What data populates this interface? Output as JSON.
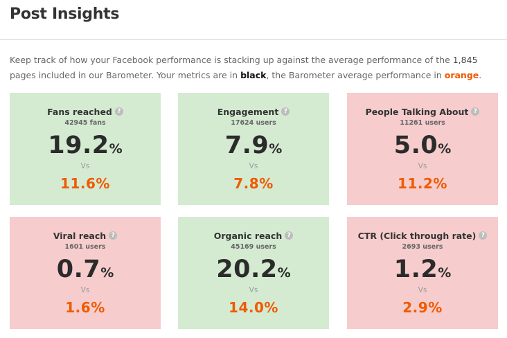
{
  "page": {
    "title": "Post Insights",
    "intro": {
      "text_before_count": "Keep track of how your Facebook performance is stacking up against the average performance of the ",
      "pages_count": "1,845",
      "text_after_count": " pages included in our Barometer.   Your metrics are in ",
      "black_word": "black",
      "text_middle": ", the Barometer average performance in ",
      "orange_word": "orange",
      "text_end": "."
    }
  },
  "colors": {
    "better_card": "#d4ebd2",
    "worse_card": "#f6cccc",
    "benchmark_orange": "#f05a00"
  },
  "cards": [
    {
      "title": "Fans reached",
      "users": "42945 fans",
      "value": "19.2",
      "unit": "%",
      "vs": "Vs",
      "benchmark": "11.6%",
      "status": "better",
      "help_icon": "question-icon"
    },
    {
      "title": "Engagement",
      "users": "17624 users",
      "value": "7.9",
      "unit": "%",
      "vs": "Vs",
      "benchmark": "7.8%",
      "status": "better",
      "help_icon": "question-icon"
    },
    {
      "title": "People Talking About",
      "users": "11261 users",
      "value": "5.0",
      "unit": "%",
      "vs": "Vs",
      "benchmark": "11.2%",
      "status": "worse",
      "help_icon": "question-icon"
    },
    {
      "title": "Viral reach",
      "users": "1601 users",
      "value": "0.7",
      "unit": "%",
      "vs": "Vs",
      "benchmark": "1.6%",
      "status": "worse",
      "help_icon": "question-icon"
    },
    {
      "title": "Organic reach",
      "users": "45169 users",
      "value": "20.2",
      "unit": "%",
      "vs": "Vs",
      "benchmark": "14.0%",
      "status": "better",
      "help_icon": "question-icon"
    },
    {
      "title": "CTR (Click through rate)",
      "users": "2693 users",
      "value": "1.2",
      "unit": "%",
      "vs": "Vs",
      "benchmark": "2.9%",
      "status": "worse",
      "help_icon": "question-icon"
    }
  ]
}
